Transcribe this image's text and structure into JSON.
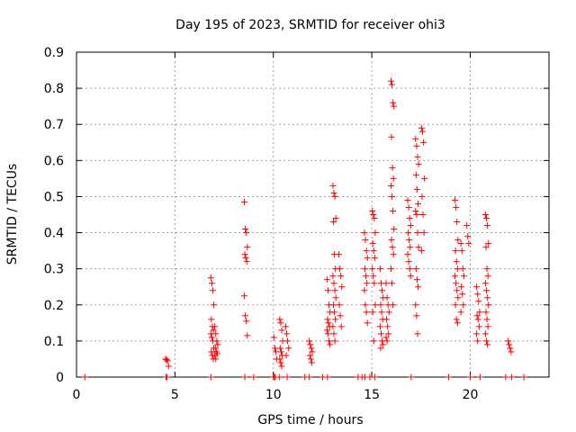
{
  "chart_data": {
    "type": "scatter",
    "title": "Day 195 of 2023, SRMTID for receiver ohi3",
    "xlabel": "GPS time / hours",
    "ylabel": "SRMTID / TECUs",
    "xlim": [
      0,
      24
    ],
    "ylim": [
      0,
      0.9
    ],
    "grid": true,
    "marker": "+",
    "color": "#ff0000",
    "x_ticks": [
      0,
      5,
      10,
      15,
      20
    ],
    "x_tick_labels": [
      "0",
      "5",
      "10",
      "15",
      "20"
    ],
    "y_ticks": [
      0,
      0.1,
      0.2,
      0.3,
      0.4,
      0.5,
      0.6,
      0.7,
      0.8,
      0.9
    ],
    "y_tick_labels": [
      "0",
      "0.1",
      "0.2",
      "0.3",
      "0.4",
      "0.5",
      "0.6",
      "0.7",
      "0.8",
      "0.9"
    ],
    "clusters": [
      {
        "x": 0.5,
        "values": [
          0.0
        ]
      },
      {
        "x": 4.6,
        "values": [
          0.05,
          0.048,
          0.045,
          0.03,
          0.0,
          0.0
        ]
      },
      {
        "x": 6.9,
        "values": [
          0.275,
          0.26,
          0.24,
          0.2,
          0.16,
          0.14,
          0.13,
          0.12,
          0.11,
          0.1,
          0.08,
          0.07,
          0.06,
          0.05,
          0.0
        ]
      },
      {
        "x": 7.1,
        "values": [
          0.14,
          0.12,
          0.1,
          0.09,
          0.08,
          0.07,
          0.065,
          0.06,
          0.05
        ]
      },
      {
        "x": 8.6,
        "values": [
          0.485,
          0.41,
          0.4,
          0.36,
          0.34,
          0.33,
          0.32,
          0.225,
          0.17,
          0.155,
          0.115,
          0.0
        ]
      },
      {
        "x": 10.1,
        "values": [
          0.11,
          0.08,
          0.07,
          0.05,
          0.0,
          0.0
        ]
      },
      {
        "x": 10.4,
        "values": [
          0.16,
          0.15,
          0.13,
          0.1,
          0.08,
          0.07,
          0.06,
          0.05,
          0.04,
          0.03
        ]
      },
      {
        "x": 10.7,
        "values": [
          0.14,
          0.12,
          0.1,
          0.08,
          0.06,
          0.0
        ]
      },
      {
        "x": 11.9,
        "values": [
          0.1,
          0.09,
          0.08,
          0.07,
          0.06,
          0.05,
          0.04,
          0.0
        ]
      },
      {
        "x": 12.8,
        "values": [
          0.27,
          0.24,
          0.2,
          0.18,
          0.16,
          0.15,
          0.14,
          0.13,
          0.12,
          0.1,
          0.09,
          0.0
        ]
      },
      {
        "x": 13.1,
        "values": [
          0.53,
          0.51,
          0.5,
          0.44,
          0.43,
          0.34,
          0.3,
          0.28,
          0.26,
          0.24,
          0.22,
          0.2,
          0.18,
          0.16,
          0.14,
          0.12,
          0.1
        ]
      },
      {
        "x": 13.4,
        "values": [
          0.34,
          0.3,
          0.28,
          0.25,
          0.2,
          0.17,
          0.14
        ]
      },
      {
        "x": 14.7,
        "values": [
          0.4,
          0.38,
          0.35,
          0.33,
          0.3,
          0.28,
          0.26,
          0.24,
          0.2,
          0.18,
          0.15,
          0.0
        ]
      },
      {
        "x": 15.1,
        "values": [
          0.46,
          0.45,
          0.44,
          0.4,
          0.37,
          0.35,
          0.33,
          0.3,
          0.28,
          0.26,
          0.2,
          0.18,
          0.1,
          0.0
        ]
      },
      {
        "x": 15.5,
        "values": [
          0.3,
          0.26,
          0.24,
          0.22,
          0.2,
          0.18,
          0.16,
          0.14,
          0.12,
          0.1,
          0.09,
          0.08
        ]
      },
      {
        "x": 15.8,
        "values": [
          0.26,
          0.22,
          0.2,
          0.18,
          0.16,
          0.14,
          0.12,
          0.11,
          0.1
        ]
      },
      {
        "x": 16.05,
        "values": [
          0.82,
          0.81,
          0.76,
          0.75,
          0.665,
          0.58,
          0.55,
          0.53,
          0.5,
          0.46,
          0.41,
          0.38,
          0.36,
          0.34,
          0.3,
          0.26,
          0.2
        ]
      },
      {
        "x": 16.9,
        "values": [
          0.49,
          0.47,
          0.44,
          0.42,
          0.4,
          0.38,
          0.36,
          0.34,
          0.32,
          0.3,
          0.28
        ]
      },
      {
        "x": 17.3,
        "values": [
          0.66,
          0.64,
          0.61,
          0.59,
          0.56,
          0.52,
          0.48,
          0.46,
          0.45,
          0.4,
          0.36,
          0.3,
          0.27,
          0.25,
          0.2,
          0.17,
          0.12
        ]
      },
      {
        "x": 17.6,
        "values": [
          0.69,
          0.68,
          0.65,
          0.55,
          0.5,
          0.45,
          0.4,
          0.35
        ]
      },
      {
        "x": 19.3,
        "values": [
          0.49,
          0.47,
          0.43,
          0.38,
          0.35,
          0.32,
          0.3,
          0.28,
          0.26,
          0.24,
          0.22,
          0.2,
          0.16,
          0.15
        ]
      },
      {
        "x": 19.6,
        "values": [
          0.37,
          0.35,
          0.3,
          0.28,
          0.25,
          0.23,
          0.2,
          0.18
        ]
      },
      {
        "x": 19.9,
        "values": [
          0.42,
          0.39,
          0.37
        ]
      },
      {
        "x": 20.4,
        "values": [
          0.25,
          0.23,
          0.21,
          0.18,
          0.17,
          0.16,
          0.14,
          0.12,
          0.1
        ]
      },
      {
        "x": 20.85,
        "values": [
          0.45,
          0.44,
          0.42,
          0.37,
          0.36,
          0.3,
          0.28,
          0.26,
          0.24,
          0.22,
          0.2,
          0.18,
          0.16,
          0.14,
          0.12,
          0.1,
          0.09
        ]
      },
      {
        "x": 22.0,
        "values": [
          0.1,
          0.09,
          0.08,
          0.07
        ]
      },
      {
        "x": 22.8,
        "values": [
          0.0
        ]
      }
    ],
    "zero_markers_x": [
      9.0,
      10.0,
      10.3,
      11.6,
      12.5,
      14.3,
      14.5,
      14.9,
      17.0,
      18.9,
      20.0,
      20.5,
      21.8,
      22.1
    ]
  }
}
